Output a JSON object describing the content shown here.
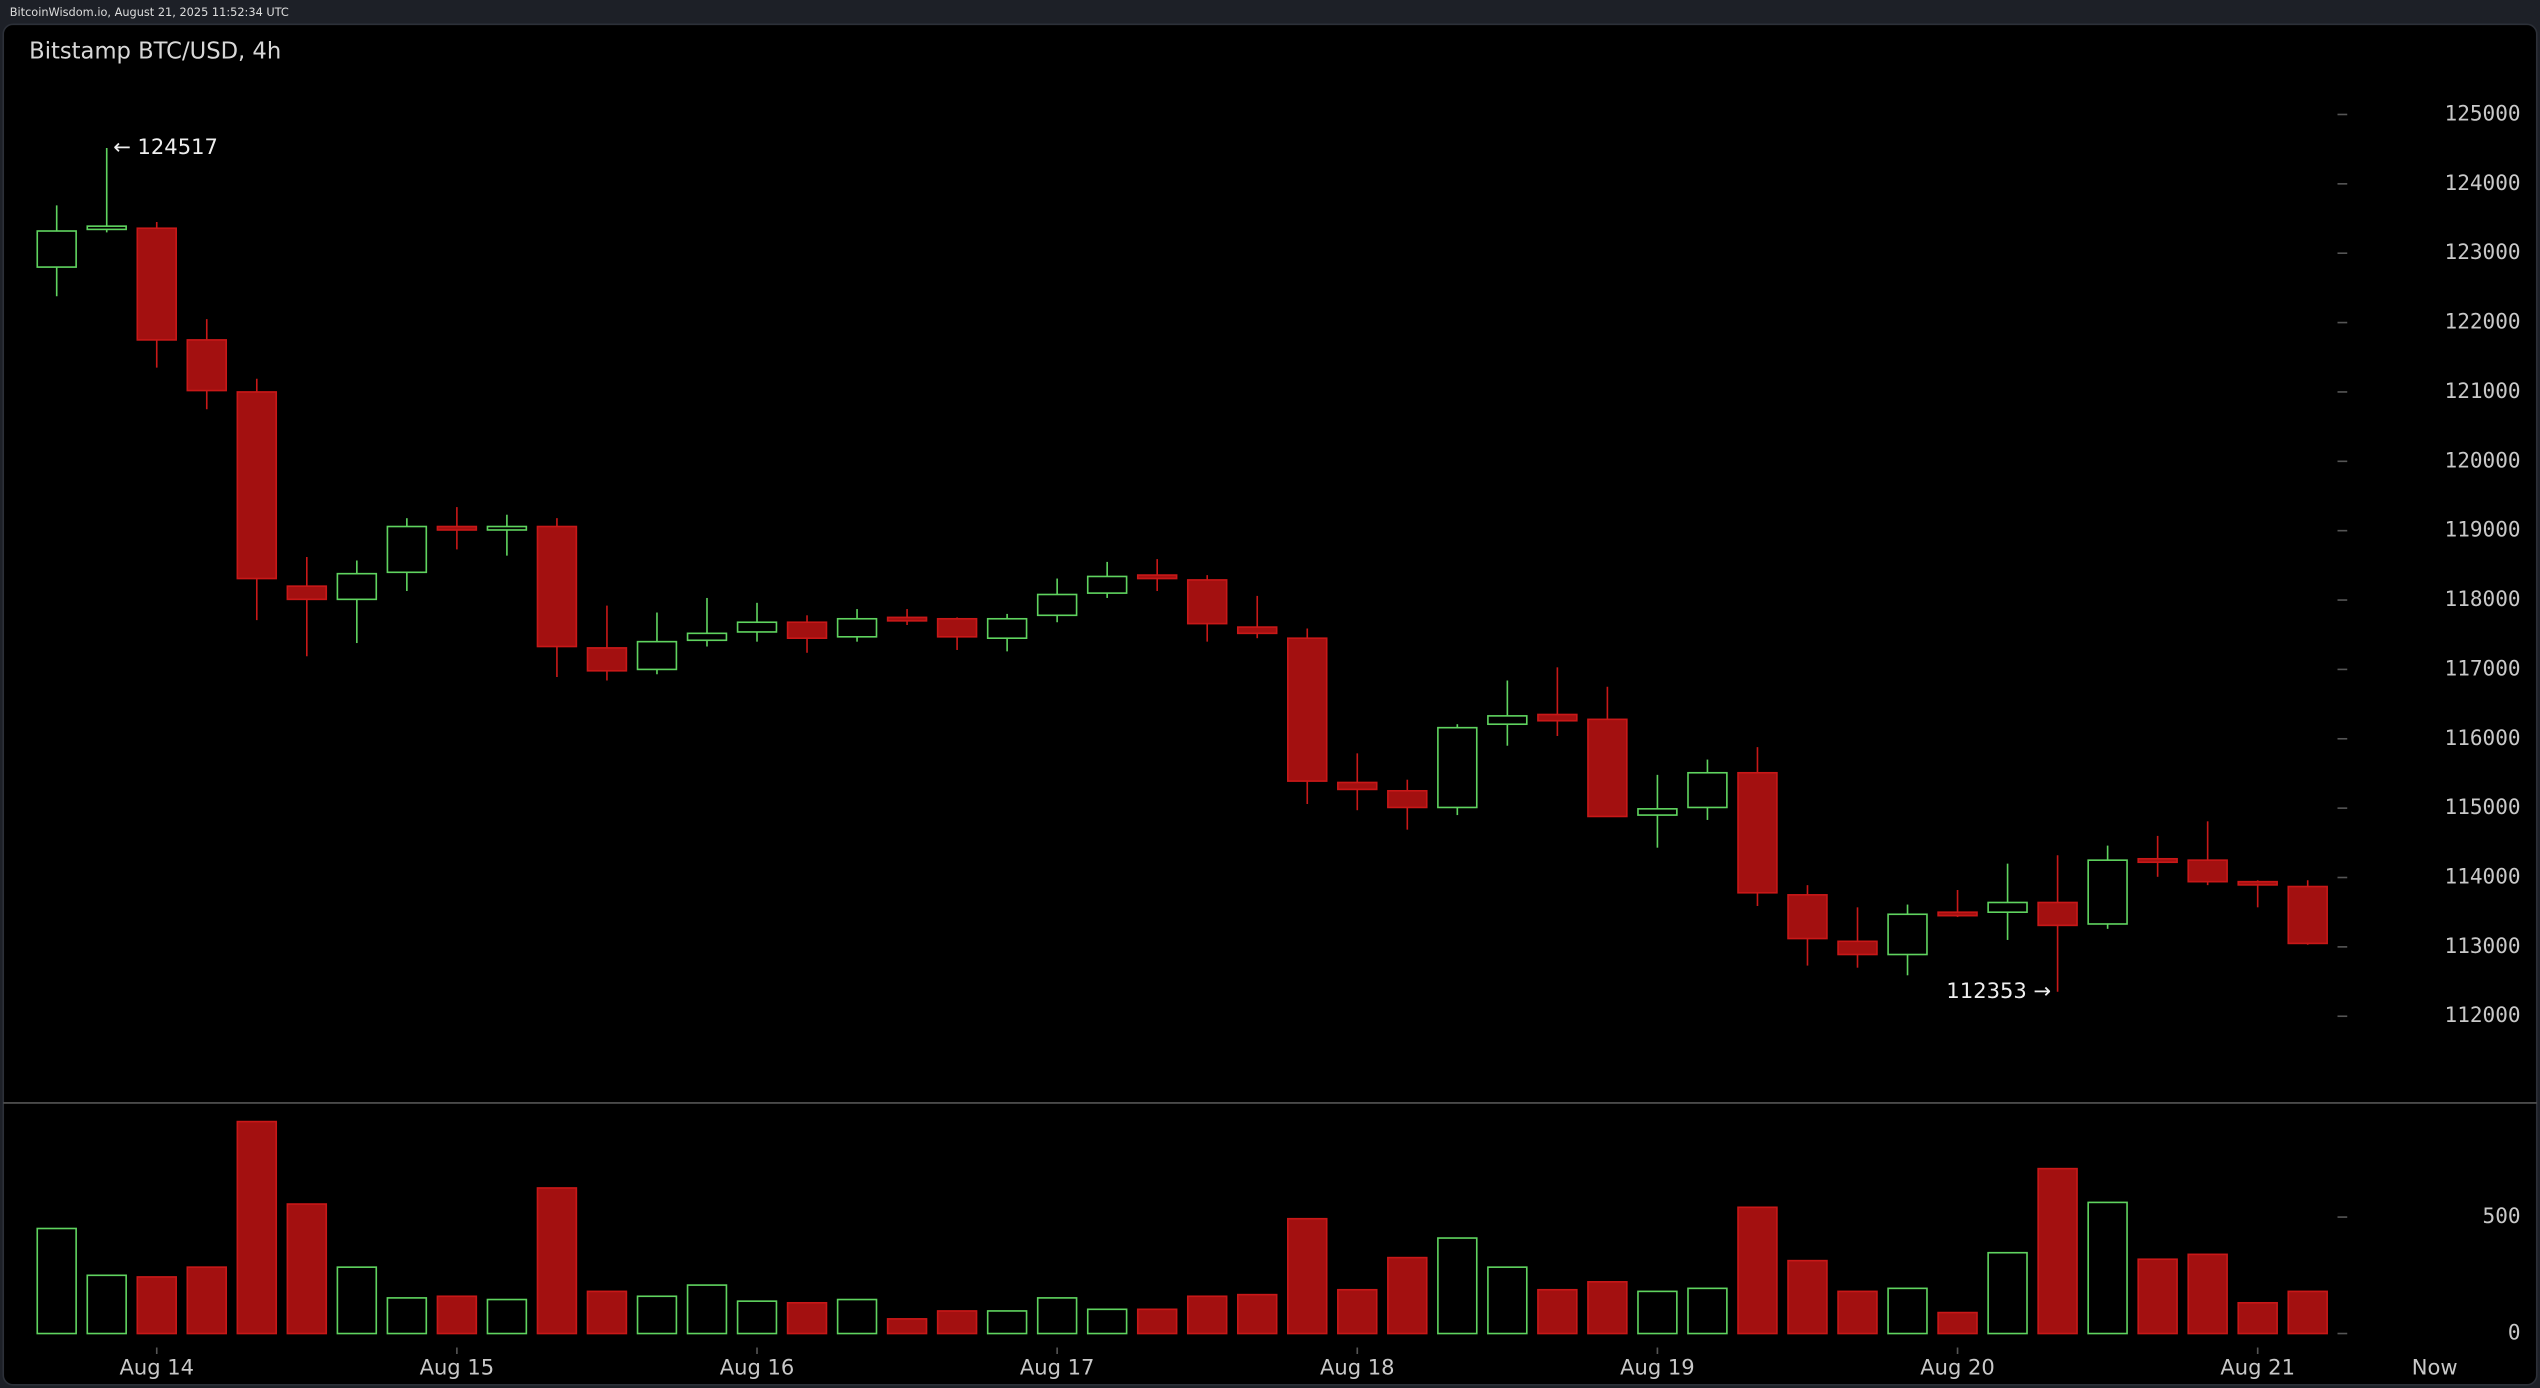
{
  "header": "BitcoinWisdom.io, August 21, 2025 11:52:34 UTC",
  "chart_data": [
    {
      "type": "candlestick",
      "title": "Bitstamp BTC/USD, 4h",
      "categories": [
        null,
        null,
        "Aug 14",
        null,
        null,
        null,
        null,
        null,
        "Aug 15",
        null,
        null,
        null,
        null,
        null,
        "Aug 16",
        null,
        null,
        null,
        null,
        null,
        "Aug 17",
        null,
        null,
        null,
        null,
        null,
        "Aug 18",
        null,
        null,
        null,
        null,
        null,
        "Aug 19",
        null,
        null,
        null,
        null,
        null,
        "Aug 20",
        null,
        null,
        null,
        null,
        null,
        "Aug 21",
        null
      ],
      "x_end_label": "Now",
      "open": [
        122800,
        123350,
        123360,
        121750,
        121000,
        118200,
        118010,
        118400,
        119060,
        119010,
        119060,
        117310,
        117000,
        117420,
        117540,
        117680,
        117470,
        117750,
        117730,
        117450,
        117780,
        118100,
        118360,
        118290,
        117610,
        117450,
        115370,
        115250,
        115010,
        116210,
        116350,
        116280,
        114900,
        115010,
        115510,
        113750,
        113080,
        112890,
        113500,
        113500,
        113640,
        113330,
        114270,
        114250,
        113940,
        113870
      ],
      "high": [
        123690,
        124517,
        123450,
        122050,
        121190,
        118620,
        118570,
        119180,
        119340,
        119230,
        119180,
        117920,
        117820,
        118030,
        117960,
        117780,
        117870,
        117870,
        117750,
        117800,
        118310,
        118550,
        118590,
        118360,
        118060,
        117590,
        115790,
        115410,
        116210,
        116840,
        117030,
        116750,
        115480,
        115700,
        115880,
        113890,
        113570,
        113610,
        113820,
        114200,
        114320,
        114460,
        114600,
        114810,
        113960,
        113960
      ],
      "low": [
        122380,
        123300,
        121350,
        120750,
        117710,
        117190,
        117380,
        118130,
        118730,
        118640,
        116890,
        116840,
        116930,
        117330,
        117400,
        117240,
        117400,
        117640,
        117280,
        117260,
        117680,
        118030,
        118130,
        117400,
        117450,
        115060,
        114970,
        114690,
        114900,
        115900,
        116040,
        114880,
        114430,
        114830,
        113590,
        112730,
        112700,
        112590,
        113430,
        113100,
        112353,
        113260,
        114010,
        113890,
        113570,
        113030
      ],
      "close": [
        123320,
        123390,
        121750,
        121020,
        118310,
        118010,
        118380,
        119060,
        119010,
        119060,
        117330,
        116980,
        117400,
        117520,
        117680,
        117450,
        117730,
        117700,
        117470,
        117730,
        118080,
        118340,
        118310,
        117660,
        117520,
        115390,
        115270,
        115010,
        116160,
        116330,
        116260,
        114880,
        114990,
        115510,
        113780,
        113120,
        112890,
        113470,
        113450,
        113640,
        113310,
        114250,
        114220,
        113940,
        113900,
        113050
      ],
      "up_color": "#5fd35f",
      "down_color": "#a31010",
      "annotations": [
        {
          "text": "← 124517"
        },
        {
          "text": "112353 →"
        }
      ],
      "ylim": [
        110750,
        126300
      ],
      "yticks": [
        112000,
        113000,
        114000,
        115000,
        116000,
        117000,
        118000,
        119000,
        120000,
        121000,
        122000,
        123000,
        124000,
        125000
      ]
    },
    {
      "type": "bar",
      "values": [
        451,
        250,
        243,
        285,
        910,
        556,
        285,
        153,
        160,
        146,
        625,
        181,
        160,
        208,
        139,
        132,
        146,
        63,
        97,
        97,
        153,
        104,
        104,
        160,
        167,
        493,
        188,
        326,
        410,
        285,
        188,
        222,
        181,
        194,
        542,
        313,
        181,
        194,
        90,
        347,
        708,
        563,
        319,
        340,
        132,
        181
      ],
      "ylim": [
        -60,
        990
      ],
      "yticks": [
        0,
        500
      ]
    }
  ]
}
